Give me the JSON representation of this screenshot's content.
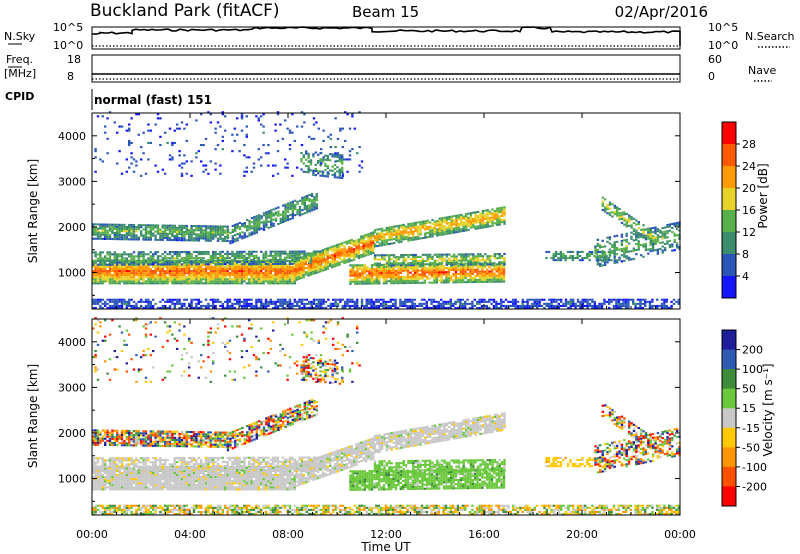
{
  "header": {
    "station": "Buckland Park (fitACF)",
    "beam": "Beam 15",
    "date": "02/Apr/2016"
  },
  "noise_panel": {
    "left_label": "N.Sky",
    "left_ticks": [
      "10^5",
      "10^0"
    ],
    "right_label": "N.Search",
    "right_ticks": [
      "10^5",
      "10^0"
    ]
  },
  "freq_panel": {
    "left_label_line1": "Freq.",
    "left_label_line2": "[MHz]",
    "left_ticks": [
      "18",
      "8"
    ],
    "right_label": "Nave",
    "right_ticks": [
      "60",
      "0"
    ]
  },
  "cpid": {
    "label": "CPID",
    "program": "normal (fast) 151"
  },
  "chart_data": [
    {
      "type": "heatmap",
      "name": "power",
      "xlabel": "",
      "ylabel": "Slant Range [km]",
      "x_ticks": [],
      "y_ticks": [
        "1000",
        "2000",
        "3000",
        "4000"
      ],
      "y_range_km": [
        200,
        4500
      ],
      "x_range_hours": [
        0,
        24
      ],
      "colorbar_label": "Power [dB]",
      "colorbar_ticks": [
        "4",
        "8",
        "12",
        "16",
        "20",
        "24",
        "28"
      ],
      "colorbar_colors": [
        "#1414ff",
        "#2a56b8",
        "#3c8c6e",
        "#58b04a",
        "#e6d228",
        "#ff9a00",
        "#ff5a00",
        "#ff0000"
      ]
    },
    {
      "type": "heatmap",
      "name": "velocity",
      "xlabel": "Time UT",
      "ylabel": "Slant Range [km]",
      "x_ticks": [
        "00:00",
        "04:00",
        "08:00",
        "12:00",
        "16:00",
        "20:00",
        "00:00"
      ],
      "y_ticks": [
        "1000",
        "2000",
        "3000",
        "4000"
      ],
      "y_range_km": [
        200,
        4500
      ],
      "x_range_hours": [
        0,
        24
      ],
      "colorbar_label": "Velocity [m s⁻¹]",
      "colorbar_ticks": [
        "200",
        "100",
        "50",
        "15",
        "-15",
        "-50",
        "-100",
        "-200"
      ],
      "colorbar_colors": [
        "#1e1e9a",
        "#2f5ab4",
        "#3c8c3c",
        "#6ac83c",
        "#c8c8c8",
        "#ffc800",
        "#ff9600",
        "#ff5000",
        "#ff0000"
      ]
    }
  ]
}
